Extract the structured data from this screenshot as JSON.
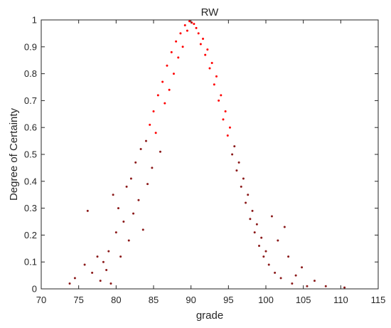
{
  "chart_data": {
    "type": "scatter",
    "title": "RW",
    "xlabel": "grade",
    "ylabel": "Degree of Certainty",
    "xlim": [
      70,
      115
    ],
    "ylim": [
      0,
      1
    ],
    "xticks": [
      70,
      75,
      80,
      85,
      90,
      95,
      100,
      105,
      110,
      115
    ],
    "yticks": [
      0,
      0.1,
      0.2,
      0.3,
      0.4,
      0.5,
      0.6,
      0.7,
      0.8,
      0.9,
      1
    ],
    "ytick_labels": [
      "0",
      "0.1",
      "0.2",
      "0.3",
      "0.4",
      "0.5",
      "0.6",
      "0.7",
      "0.8",
      "0.9",
      "1"
    ],
    "grid": false,
    "legend": "none",
    "series": [
      {
        "color_dark": "#8b1a1a",
        "color_bright": "#ff0000",
        "points": [
          [
            73.8,
            0.02
          ],
          [
            74.5,
            0.04
          ],
          [
            75.8,
            0.09
          ],
          [
            76.2,
            0.29
          ],
          [
            76.8,
            0.06
          ],
          [
            77.5,
            0.12
          ],
          [
            77.9,
            0.03
          ],
          [
            78.3,
            0.1
          ],
          [
            78.7,
            0.07
          ],
          [
            79.0,
            0.14
          ],
          [
            79.3,
            0.02
          ],
          [
            79.6,
            0.35
          ],
          [
            80.0,
            0.21
          ],
          [
            80.3,
            0.3
          ],
          [
            80.6,
            0.12
          ],
          [
            81.0,
            0.25
          ],
          [
            81.4,
            0.38
          ],
          [
            81.7,
            0.18
          ],
          [
            82.0,
            0.41
          ],
          [
            82.3,
            0.28
          ],
          [
            82.6,
            0.47
          ],
          [
            83.0,
            0.33
          ],
          [
            83.3,
            0.52
          ],
          [
            83.6,
            0.22
          ],
          [
            84.0,
            0.55
          ],
          [
            84.2,
            0.39
          ],
          [
            84.5,
            0.61
          ],
          [
            84.8,
            0.45
          ],
          [
            85.0,
            0.66
          ],
          [
            85.3,
            0.58
          ],
          [
            85.6,
            0.72
          ],
          [
            85.9,
            0.51
          ],
          [
            86.2,
            0.77
          ],
          [
            86.5,
            0.69
          ],
          [
            86.8,
            0.83
          ],
          [
            87.1,
            0.74
          ],
          [
            87.4,
            0.88
          ],
          [
            87.7,
            0.8
          ],
          [
            88.0,
            0.92
          ],
          [
            88.3,
            0.86
          ],
          [
            88.6,
            0.95
          ],
          [
            88.9,
            0.9
          ],
          [
            89.2,
            0.98
          ],
          [
            89.5,
            0.96
          ],
          [
            89.8,
            0.995
          ],
          [
            90.1,
            0.99
          ],
          [
            90.4,
            0.985
          ],
          [
            90.7,
            0.97
          ],
          [
            91.0,
            0.95
          ],
          [
            91.3,
            0.91
          ],
          [
            91.6,
            0.93
          ],
          [
            91.9,
            0.87
          ],
          [
            92.2,
            0.89
          ],
          [
            92.5,
            0.82
          ],
          [
            92.8,
            0.84
          ],
          [
            93.1,
            0.76
          ],
          [
            93.4,
            0.79
          ],
          [
            93.7,
            0.7
          ],
          [
            94.0,
            0.72
          ],
          [
            94.3,
            0.63
          ],
          [
            94.6,
            0.66
          ],
          [
            94.9,
            0.57
          ],
          [
            95.2,
            0.6
          ],
          [
            95.5,
            0.5
          ],
          [
            95.8,
            0.53
          ],
          [
            96.1,
            0.44
          ],
          [
            96.4,
            0.47
          ],
          [
            96.7,
            0.38
          ],
          [
            97.0,
            0.41
          ],
          [
            97.3,
            0.32
          ],
          [
            97.6,
            0.35
          ],
          [
            97.9,
            0.26
          ],
          [
            98.2,
            0.29
          ],
          [
            98.5,
            0.21
          ],
          [
            98.8,
            0.24
          ],
          [
            99.1,
            0.16
          ],
          [
            99.4,
            0.19
          ],
          [
            99.7,
            0.12
          ],
          [
            100.0,
            0.14
          ],
          [
            100.4,
            0.09
          ],
          [
            100.8,
            0.27
          ],
          [
            101.2,
            0.06
          ],
          [
            101.6,
            0.18
          ],
          [
            102.0,
            0.04
          ],
          [
            102.5,
            0.23
          ],
          [
            103.0,
            0.12
          ],
          [
            103.5,
            0.02
          ],
          [
            104.0,
            0.05
          ],
          [
            104.8,
            0.08
          ],
          [
            105.5,
            0.01
          ],
          [
            106.5,
            0.03
          ],
          [
            108.0,
            0.01
          ],
          [
            110.5,
            0.005
          ]
        ]
      }
    ]
  }
}
